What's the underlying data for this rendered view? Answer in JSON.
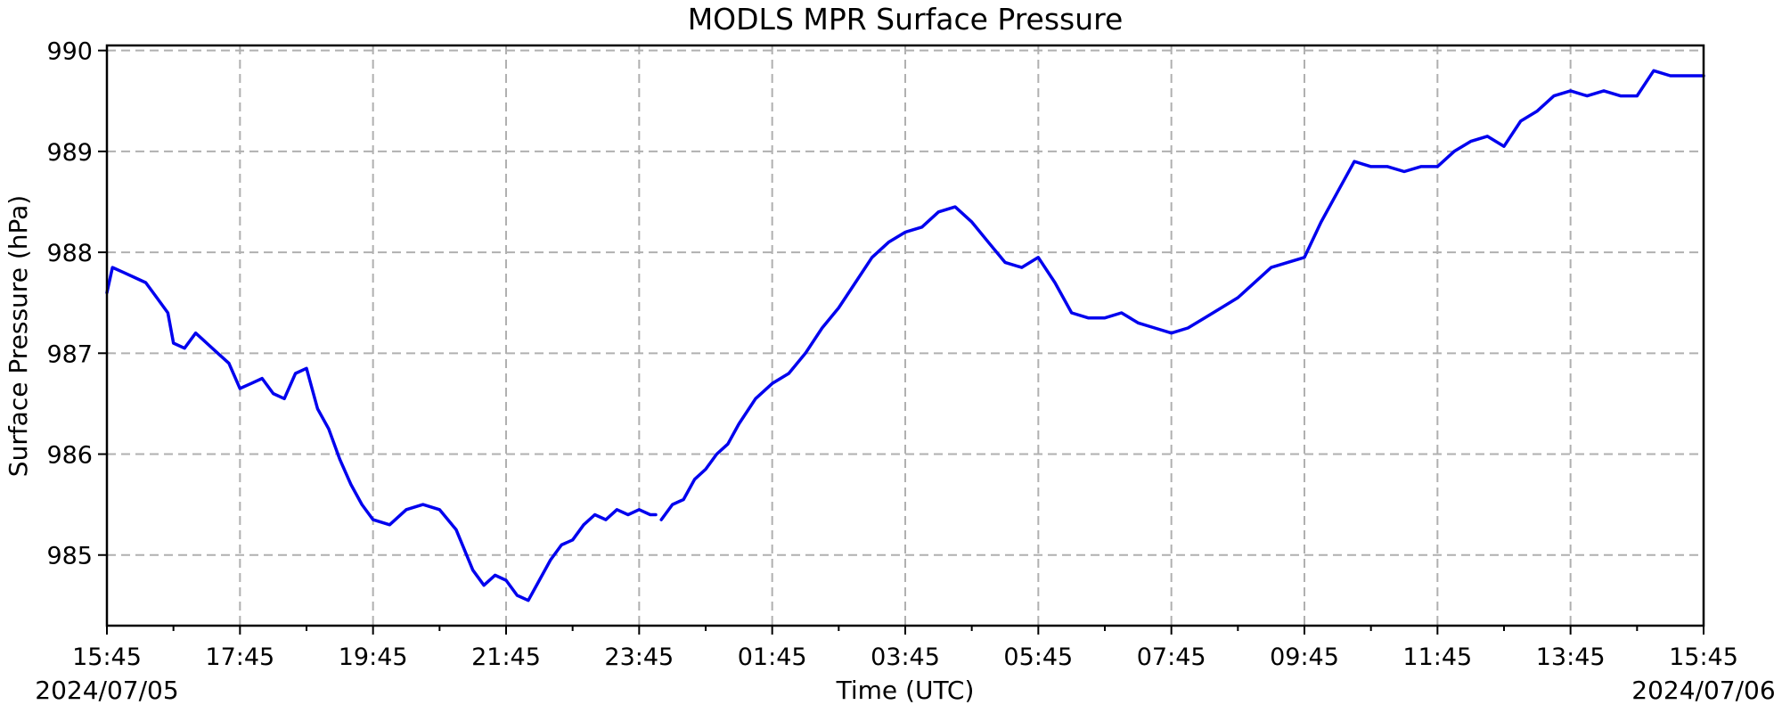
{
  "chart_data": {
    "type": "line",
    "title": "MODLS MPR Surface Pressure",
    "xlabel": "Time (UTC)",
    "ylabel": "Surface Pressure (hPa)",
    "date_labels": {
      "start": "2024/07/05",
      "end": "2024/07/06"
    },
    "x_range": [
      "2024-07-05 15:45",
      "2024-07-06 15:45"
    ],
    "ylim": [
      984.3,
      990.05
    ],
    "x_ticks": [
      "15:45",
      "17:45",
      "19:45",
      "21:45",
      "23:45",
      "01:45",
      "03:45",
      "05:45",
      "07:45",
      "09:45",
      "11:45",
      "13:45",
      "15:45"
    ],
    "y_ticks": [
      985,
      986,
      987,
      988,
      989,
      990
    ],
    "grid": true,
    "line_color": "#0000ee",
    "series": [
      {
        "segments": [
          {
            "x": [
              "2024-07-05 15:45",
              "2024-07-05 15:50",
              "2024-07-05 16:00",
              "2024-07-05 16:10",
              "2024-07-05 16:20",
              "2024-07-05 16:30",
              "2024-07-05 16:40",
              "2024-07-05 16:45",
              "2024-07-05 16:55",
              "2024-07-05 17:05",
              "2024-07-05 17:10",
              "2024-07-05 17:15",
              "2024-07-05 17:25",
              "2024-07-05 17:35",
              "2024-07-05 17:45",
              "2024-07-05 17:55",
              "2024-07-05 18:05",
              "2024-07-05 18:15",
              "2024-07-05 18:25",
              "2024-07-05 18:35",
              "2024-07-05 18:45",
              "2024-07-05 18:55",
              "2024-07-05 19:05",
              "2024-07-05 19:15",
              "2024-07-05 19:25",
              "2024-07-05 19:35",
              "2024-07-05 19:45",
              "2024-07-05 20:00",
              "2024-07-05 20:15",
              "2024-07-05 20:30",
              "2024-07-05 20:45",
              "2024-07-05 21:00",
              "2024-07-05 21:15",
              "2024-07-05 21:25",
              "2024-07-05 21:35",
              "2024-07-05 21:45",
              "2024-07-05 21:55",
              "2024-07-05 22:05",
              "2024-07-05 22:15",
              "2024-07-05 22:25",
              "2024-07-05 22:35",
              "2024-07-05 22:45",
              "2024-07-05 22:55",
              "2024-07-05 23:05",
              "2024-07-05 23:15",
              "2024-07-05 23:25",
              "2024-07-05 23:35",
              "2024-07-05 23:45",
              "2024-07-05 23:55",
              "2024-07-06 00:00"
            ],
            "y": [
              987.6,
              987.85,
              987.8,
              987.75,
              987.7,
              987.55,
              987.4,
              987.1,
              987.05,
              987.2,
              987.15,
              987.1,
              987.0,
              986.9,
              986.65,
              986.7,
              986.75,
              986.6,
              986.55,
              986.8,
              986.85,
              986.45,
              986.25,
              985.95,
              985.7,
              985.5,
              985.35,
              985.3,
              985.45,
              985.5,
              985.45,
              985.25,
              984.85,
              984.7,
              984.8,
              984.75,
              984.6,
              984.55,
              984.75,
              984.95,
              985.1,
              985.15,
              985.3,
              985.4,
              985.35,
              985.45,
              985.4,
              985.45,
              985.4,
              985.4
            ]
          },
          {
            "x": [
              "2024-07-06 00:05",
              "2024-07-06 00:15",
              "2024-07-06 00:25",
              "2024-07-06 00:35",
              "2024-07-06 00:45",
              "2024-07-06 00:55",
              "2024-07-06 01:05",
              "2024-07-06 01:15",
              "2024-07-06 01:30",
              "2024-07-06 01:45",
              "2024-07-06 02:00",
              "2024-07-06 02:15",
              "2024-07-06 02:30",
              "2024-07-06 02:45",
              "2024-07-06 03:00",
              "2024-07-06 03:15",
              "2024-07-06 03:30",
              "2024-07-06 03:45",
              "2024-07-06 04:00",
              "2024-07-06 04:15",
              "2024-07-06 04:30",
              "2024-07-06 04:45",
              "2024-07-06 05:00",
              "2024-07-06 05:15",
              "2024-07-06 05:30",
              "2024-07-06 05:45",
              "2024-07-06 06:00",
              "2024-07-06 06:15",
              "2024-07-06 06:30",
              "2024-07-06 06:45",
              "2024-07-06 07:00",
              "2024-07-06 07:15",
              "2024-07-06 07:30",
              "2024-07-06 07:45",
              "2024-07-06 08:00",
              "2024-07-06 08:15",
              "2024-07-06 08:30",
              "2024-07-06 08:45",
              "2024-07-06 09:00",
              "2024-07-06 09:15",
              "2024-07-06 09:30",
              "2024-07-06 09:45",
              "2024-07-06 10:00",
              "2024-07-06 10:15",
              "2024-07-06 10:30",
              "2024-07-06 10:45",
              "2024-07-06 11:00",
              "2024-07-06 11:15",
              "2024-07-06 11:30",
              "2024-07-06 11:45",
              "2024-07-06 12:00",
              "2024-07-06 12:15",
              "2024-07-06 12:30",
              "2024-07-06 12:45",
              "2024-07-06 13:00",
              "2024-07-06 13:15",
              "2024-07-06 13:30",
              "2024-07-06 13:45",
              "2024-07-06 14:00",
              "2024-07-06 14:15",
              "2024-07-06 14:30",
              "2024-07-06 14:45",
              "2024-07-06 15:00",
              "2024-07-06 15:15",
              "2024-07-06 15:30",
              "2024-07-06 15:45"
            ],
            "y": [
              985.35,
              985.5,
              985.55,
              985.75,
              985.85,
              986.0,
              986.1,
              986.3,
              986.55,
              986.7,
              986.8,
              987.0,
              987.25,
              987.45,
              987.7,
              987.95,
              988.1,
              988.2,
              988.25,
              988.4,
              988.45,
              988.3,
              988.1,
              987.9,
              987.85,
              987.95,
              987.7,
              987.4,
              987.35,
              987.35,
              987.4,
              987.3,
              987.25,
              987.2,
              987.25,
              987.35,
              987.45,
              987.55,
              987.7,
              987.85,
              987.9,
              987.95,
              988.3,
              988.6,
              988.9,
              988.85,
              988.85,
              988.8,
              988.85,
              988.85,
              989.0,
              989.1,
              989.15,
              989.05,
              989.3,
              989.4,
              989.55,
              989.6,
              989.55,
              989.6,
              989.55,
              989.55,
              989.8,
              989.75,
              989.75,
              989.75
            ]
          }
        ]
      }
    ]
  }
}
